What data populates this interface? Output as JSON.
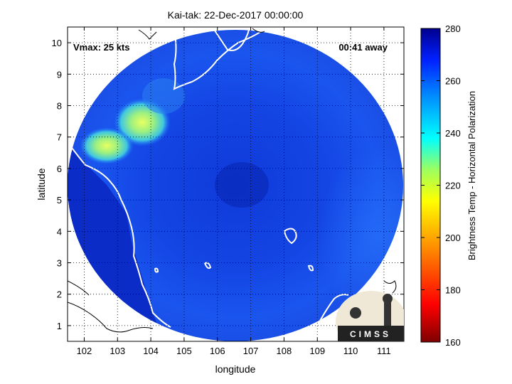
{
  "title": "Kai-tak: 22-Dec-2017 00:00:00",
  "vmax_label": "Vmax: 25 kts",
  "away_label": "00:41 away",
  "xlabel": "longitude",
  "ylabel": "latitude",
  "colorbar_label": "Brightness Temp - Horizontal Polarization",
  "logo_text": "CIMSS",
  "x_ticks": [
    "102",
    "103",
    "104",
    "105",
    "106",
    "107",
    "108",
    "109",
    "110",
    "111"
  ],
  "y_ticks": [
    "1",
    "2",
    "3",
    "4",
    "5",
    "6",
    "7",
    "8",
    "9",
    "10"
  ],
  "colorbar_ticks": [
    "280",
    "260",
    "240",
    "220",
    "200",
    "180",
    "160"
  ],
  "colors": {
    "background_blue": "#0a2fd0",
    "swath_blue": "#1448e6",
    "cold_highlight": "#c8f060",
    "coastline": "#ffffff",
    "land_outline": "#000000"
  }
}
